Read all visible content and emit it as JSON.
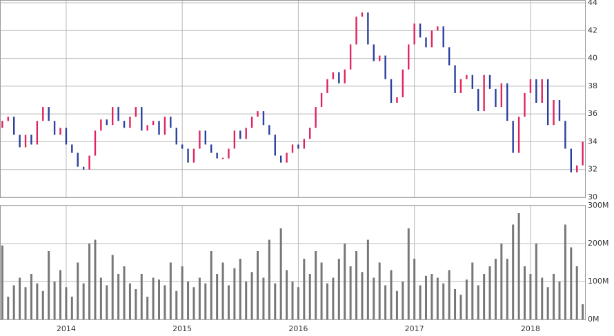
{
  "chart_data": {
    "type": "ohlc",
    "x": [
      2013.45,
      2013.5,
      2013.55,
      2013.6,
      2013.65,
      2013.7,
      2013.75,
      2013.8,
      2013.85,
      2013.9,
      2013.95,
      2014.0,
      2014.05,
      2014.1,
      2014.15,
      2014.2,
      2014.25,
      2014.3,
      2014.35,
      2014.4,
      2014.45,
      2014.5,
      2014.55,
      2014.6,
      2014.65,
      2014.7,
      2014.75,
      2014.8,
      2014.85,
      2014.9,
      2014.95,
      2015.0,
      2015.05,
      2015.1,
      2015.15,
      2015.2,
      2015.25,
      2015.3,
      2015.35,
      2015.4,
      2015.45,
      2015.5,
      2015.55,
      2015.6,
      2015.65,
      2015.7,
      2015.75,
      2015.8,
      2015.85,
      2015.9,
      2015.95,
      2016.0,
      2016.05,
      2016.1,
      2016.15,
      2016.2,
      2016.25,
      2016.3,
      2016.35,
      2016.4,
      2016.45,
      2016.5,
      2016.55,
      2016.6,
      2016.65,
      2016.7,
      2016.75,
      2016.8,
      2016.85,
      2016.9,
      2016.95,
      2017.0,
      2017.05,
      2017.1,
      2017.15,
      2017.2,
      2017.25,
      2017.3,
      2017.35,
      2017.4,
      2017.45,
      2017.5,
      2017.55,
      2017.6,
      2017.65,
      2017.7,
      2017.75,
      2017.8,
      2017.85,
      2017.9,
      2017.95,
      2018.0,
      2018.05,
      2018.1,
      2018.15,
      2018.2,
      2018.25,
      2018.3,
      2018.35,
      2018.4,
      2018.45
    ],
    "open": [
      35.0,
      35.5,
      35.8,
      34.5,
      33.6,
      34.5,
      33.8,
      35.5,
      36.5,
      35.5,
      34.5,
      35.0,
      33.8,
      33.2,
      32.2,
      32.0,
      33.0,
      34.8,
      35.6,
      35.2,
      36.5,
      35.5,
      35.0,
      35.8,
      36.5,
      34.8,
      35.2,
      35.5,
      34.5,
      35.8,
      35.0,
      33.8,
      33.5,
      32.5,
      33.5,
      34.8,
      33.8,
      33.2,
      32.8,
      32.8,
      33.5,
      34.8,
      34.2,
      35.0,
      35.8,
      36.2,
      35.2,
      34.5,
      33.0,
      32.5,
      33.2,
      33.8,
      33.5,
      34.2,
      35.0,
      36.5,
      37.5,
      38.5,
      39.0,
      38.2,
      39.2,
      41.0,
      43.0,
      43.3,
      41.0,
      39.8,
      40.2,
      38.5,
      36.8,
      37.2,
      39.2,
      41.0,
      42.5,
      41.5,
      40.8,
      42.0,
      42.3,
      40.8,
      39.5,
      37.5,
      38.5,
      38.8,
      37.8,
      36.2,
      38.8,
      37.8,
      36.5,
      38.2,
      35.5,
      33.2,
      35.8,
      37.5,
      38.5,
      36.8,
      38.5,
      35.2,
      37.0,
      35.5,
      33.5,
      31.8,
      32.3
    ],
    "close": [
      35.5,
      35.8,
      34.5,
      33.6,
      34.5,
      33.8,
      35.5,
      36.5,
      35.5,
      34.5,
      35.0,
      33.8,
      33.2,
      32.2,
      32.0,
      33.0,
      34.8,
      35.6,
      35.2,
      36.5,
      35.5,
      35.0,
      35.8,
      36.5,
      34.8,
      35.2,
      35.5,
      34.5,
      35.8,
      35.0,
      33.8,
      33.5,
      32.5,
      33.5,
      34.8,
      33.8,
      33.2,
      32.8,
      32.8,
      33.5,
      34.8,
      34.2,
      35.0,
      35.8,
      36.2,
      35.2,
      34.5,
      33.0,
      32.5,
      33.2,
      33.8,
      33.5,
      34.2,
      35.0,
      36.5,
      37.5,
      38.5,
      39.0,
      38.2,
      39.2,
      41.0,
      43.0,
      43.3,
      41.0,
      39.8,
      40.2,
      38.5,
      36.8,
      37.2,
      39.2,
      41.0,
      42.5,
      41.5,
      40.8,
      42.0,
      42.3,
      40.8,
      39.5,
      37.5,
      38.5,
      38.8,
      37.8,
      36.2,
      38.8,
      37.8,
      36.5,
      38.2,
      35.5,
      33.2,
      35.8,
      37.5,
      38.5,
      36.8,
      38.5,
      35.2,
      37.0,
      35.5,
      33.5,
      31.8,
      32.3,
      34.0
    ],
    "volume": [
      195,
      60,
      90,
      110,
      85,
      120,
      95,
      75,
      180,
      100,
      130,
      85,
      60,
      150,
      95,
      200,
      210,
      110,
      90,
      170,
      120,
      140,
      95,
      80,
      120,
      60,
      110,
      105,
      90,
      150,
      75,
      140,
      100,
      85,
      110,
      95,
      180,
      120,
      150,
      90,
      135,
      160,
      100,
      125,
      180,
      110,
      210,
      95,
      240,
      130,
      100,
      85,
      160,
      120,
      180,
      150,
      95,
      110,
      160,
      200,
      140,
      180,
      125,
      210,
      110,
      150,
      90,
      130,
      75,
      100,
      240,
      160,
      90,
      115,
      120,
      110,
      95,
      130,
      80,
      65,
      105,
      150,
      90,
      120,
      140,
      160,
      200,
      160,
      250,
      280,
      140,
      120,
      200,
      110,
      85,
      120,
      100,
      250,
      190,
      140,
      40
    ],
    "up_color": "#e0245e",
    "down_color": "#2b3f9e",
    "volume_color": "#777777",
    "xlim": [
      2013.43,
      2018.47
    ],
    "xticks": [
      2014,
      2015,
      2016,
      2017,
      2018
    ],
    "ylim": [
      30,
      44
    ],
    "yticks": [
      30,
      32,
      34,
      36,
      38,
      40,
      42,
      44
    ],
    "y2lim": [
      0,
      300
    ],
    "y2ticks": [
      {
        "value": 0,
        "label": "0M"
      },
      {
        "value": 100,
        "label": "100M"
      },
      {
        "value": 200,
        "label": "200M"
      },
      {
        "value": 300,
        "label": "300M"
      }
    ],
    "grid": true
  }
}
